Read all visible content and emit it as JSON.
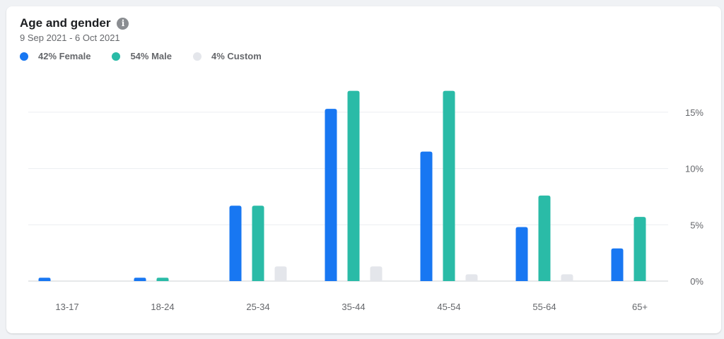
{
  "card": {
    "title": "Age and gender",
    "info_icon": "info-icon",
    "date_range": "9 Sep 2021 - 6 Oct 2021"
  },
  "colors": {
    "female": "#1877f2",
    "male": "#2abba7",
    "custom": "#e4e6eb",
    "grid": "#eceef1",
    "axis": "#ccd0d5"
  },
  "legend": [
    {
      "label": "42% Female",
      "color": "#1877f2"
    },
    {
      "label": "54% Male",
      "color": "#2abba7"
    },
    {
      "label": "4% Custom",
      "color": "#e4e6eb"
    }
  ],
  "chart_data": {
    "type": "bar",
    "categories": [
      "13-17",
      "18-24",
      "25-34",
      "35-44",
      "45-54",
      "55-64",
      "65+"
    ],
    "series": [
      {
        "name": "Female",
        "color": "#1877f2",
        "values": [
          0.3,
          0.3,
          6.7,
          15.3,
          11.5,
          4.8,
          2.9
        ]
      },
      {
        "name": "Male",
        "color": "#2abba7",
        "values": [
          0,
          0.3,
          6.7,
          16.9,
          16.9,
          7.6,
          5.7
        ]
      },
      {
        "name": "Custom",
        "color": "#e4e6eb",
        "values": [
          0,
          0,
          1.3,
          1.3,
          0.6,
          0.6,
          0
        ]
      }
    ],
    "yticks": [
      {
        "value": 0,
        "label": "0%"
      },
      {
        "value": 5,
        "label": "5%"
      },
      {
        "value": 10,
        "label": "10%"
      },
      {
        "value": 15,
        "label": "15%"
      }
    ],
    "ylim": [
      0,
      17
    ],
    "grid": true,
    "legend_position": "top-left"
  }
}
